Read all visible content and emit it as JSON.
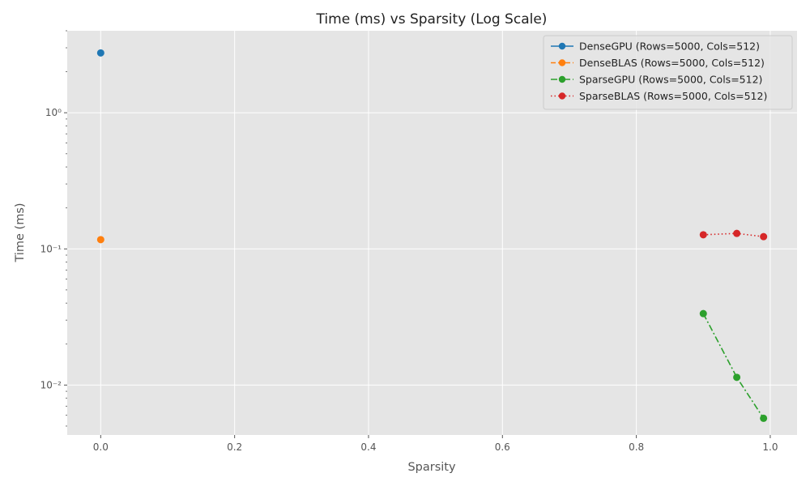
{
  "chart_data": {
    "type": "line",
    "title": "Time (ms) vs Sparsity (Log Scale)",
    "xlabel": "Sparsity",
    "ylabel": "Time (ms)",
    "xlim": [
      -0.05,
      1.04
    ],
    "ylim": [
      0.0043,
      4.0
    ],
    "yscale": "log",
    "grid": true,
    "legend_position": "top-right",
    "x_ticks": [
      0.0,
      0.2,
      0.4,
      0.6,
      0.8,
      1.0
    ],
    "x_tick_labels": [
      "0.0",
      "0.2",
      "0.4",
      "0.6",
      "0.8",
      "1.0"
    ],
    "y_ticks": [
      0.01,
      0.1,
      1
    ],
    "y_tick_labels": [
      "10⁻²",
      "10⁻¹",
      "10⁰"
    ],
    "series": [
      {
        "name": "DenseGPU (Rows=5000, Cols=512)",
        "color": "#1f77b4",
        "line_style": "solid",
        "x": [
          0.0
        ],
        "y": [
          2.75
        ]
      },
      {
        "name": "DenseBLAS (Rows=5000, Cols=512)",
        "color": "#ff7f0e",
        "line_style": "dashed",
        "x": [
          0.0
        ],
        "y": [
          0.117
        ]
      },
      {
        "name": "SparseGPU (Rows=5000, Cols=512)",
        "color": "#2ca02c",
        "line_style": "dashdot",
        "x": [
          0.9,
          0.95,
          0.99
        ],
        "y": [
          0.0335,
          0.0114,
          0.0057
        ]
      },
      {
        "name": "SparseBLAS (Rows=5000, Cols=512)",
        "color": "#d62728",
        "line_style": "dotted",
        "x": [
          0.9,
          0.95,
          0.99
        ],
        "y": [
          0.127,
          0.13,
          0.123
        ]
      }
    ]
  }
}
